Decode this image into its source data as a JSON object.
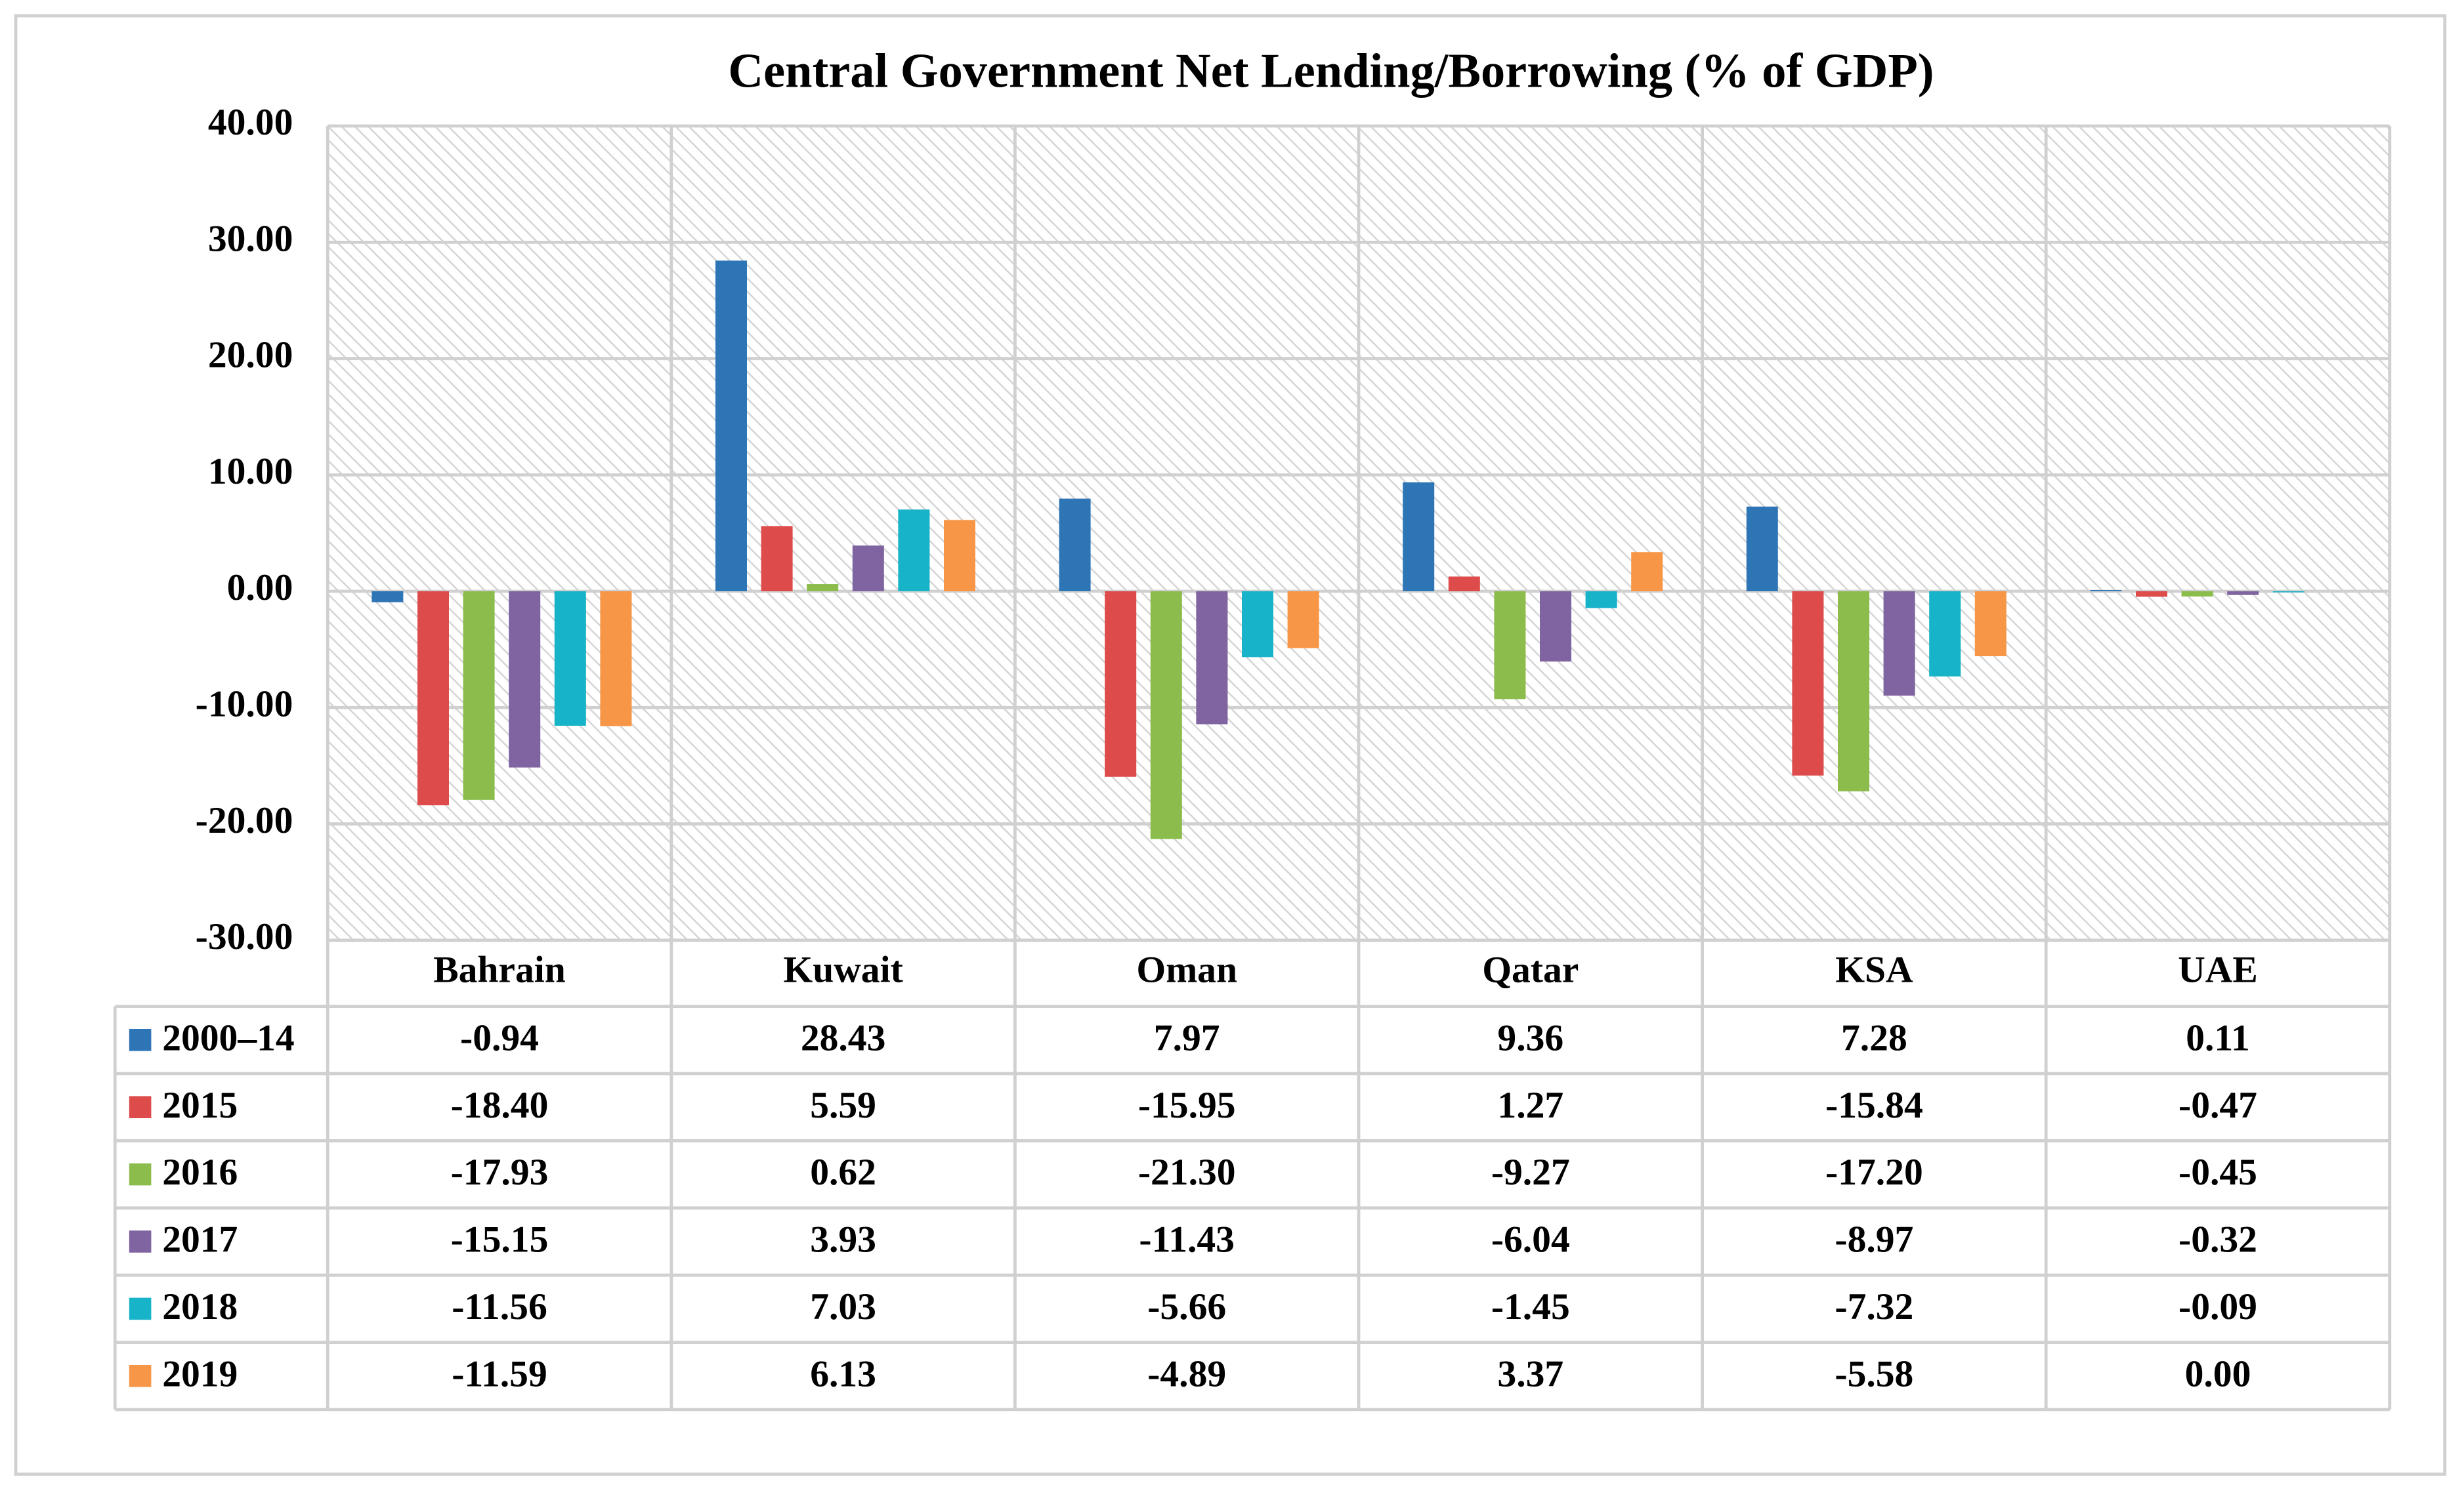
{
  "chart_data": {
    "type": "bar",
    "title": "Central Government Net Lending/Borrowing (% of GDP)",
    "categories": [
      "Bahrain",
      "Kuwait",
      "Oman",
      "Qatar",
      "KSA",
      "UAE"
    ],
    "ylim": [
      -30,
      40
    ],
    "yticks": [
      {
        "value": 40,
        "label": "40.00"
      },
      {
        "value": 30,
        "label": "30.00"
      },
      {
        "value": 20,
        "label": "20.00"
      },
      {
        "value": 10,
        "label": "10.00"
      },
      {
        "value": 0,
        "label": "0.00"
      },
      {
        "value": -10,
        "label": "-10.00"
      },
      {
        "value": -20,
        "label": "-20.00"
      },
      {
        "value": -30,
        "label": "-30.00"
      }
    ],
    "grid": true,
    "series": [
      {
        "name": "2000–14",
        "color": "#2e75b6",
        "values": [
          -0.94,
          28.43,
          7.97,
          9.36,
          7.28,
          0.11
        ],
        "value_labels": [
          "-0.94",
          "28.43",
          "7.97",
          "9.36",
          "7.28",
          "0.11"
        ]
      },
      {
        "name": "2015",
        "color": "#dd4b4b",
        "values": [
          -18.4,
          5.59,
          -15.95,
          1.27,
          -15.84,
          -0.47
        ],
        "value_labels": [
          "-18.40",
          "5.59",
          "-15.95",
          "1.27",
          "-15.84",
          "-0.47"
        ]
      },
      {
        "name": "2016",
        "color": "#8cbc4c",
        "values": [
          -17.93,
          0.62,
          -21.3,
          -9.27,
          -17.2,
          -0.45
        ],
        "value_labels": [
          "-17.93",
          "0.62",
          "-21.30",
          "-9.27",
          "-17.20",
          "-0.45"
        ]
      },
      {
        "name": "2017",
        "color": "#8064a2",
        "values": [
          -15.15,
          3.93,
          -11.43,
          -6.04,
          -8.97,
          -0.32
        ],
        "value_labels": [
          "-15.15",
          "3.93",
          "-11.43",
          "-6.04",
          "-8.97",
          "-0.32"
        ]
      },
      {
        "name": "2018",
        "color": "#17b3c8",
        "values": [
          -11.56,
          7.03,
          -5.66,
          -1.45,
          -7.32,
          -0.09
        ],
        "value_labels": [
          "-11.56",
          "7.03",
          "-5.66",
          "-1.45",
          "-7.32",
          "-0.09"
        ]
      },
      {
        "name": "2019",
        "color": "#f79646",
        "values": [
          -11.59,
          6.13,
          -4.89,
          3.37,
          -5.58,
          0
        ],
        "value_labels": [
          "-11.59",
          "6.13",
          "-4.89",
          "3.37",
          "-5.58",
          "0.00"
        ]
      }
    ]
  }
}
